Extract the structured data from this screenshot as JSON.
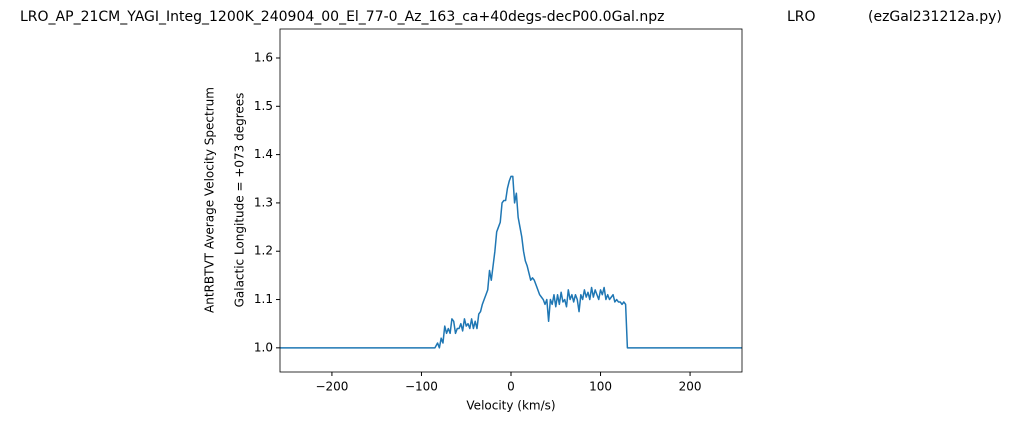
{
  "chart_data": {
    "type": "line",
    "title": "LRO_AP_21CM_YAGI_Integ_1200K_240904_00_El_77-0_Az_163_ca+40degs-decP00.0Gal.npz",
    "annotations": [
      "LRO",
      "(ezGal231212a.py)"
    ],
    "xlabel": "Velocity (km/s)",
    "ylabel": [
      "AntRBTVT Average Velocity Spectrum",
      "Galactic Longitude = +073 degrees"
    ],
    "xlim": [
      -258,
      258
    ],
    "ylim": [
      0.95,
      1.66
    ],
    "xticks": [
      {
        "value": -200,
        "label": "−200"
      },
      {
        "value": -100,
        "label": "−100"
      },
      0,
      100,
      200
    ],
    "yticks": [
      {
        "value": 1.0,
        "label": "1.0"
      },
      1.1,
      1.2,
      1.3,
      1.4,
      1.5,
      1.6
    ],
    "grid": false,
    "x": [
      -258,
      -85,
      -82,
      -80,
      -78,
      -76,
      -74,
      -72,
      -70,
      -68,
      -66,
      -64,
      -62,
      -60,
      -58,
      -56,
      -54,
      -52,
      -50,
      -48,
      -46,
      -44,
      -42,
      -40,
      -38,
      -36,
      -34,
      -32,
      -30,
      -28,
      -26,
      -24,
      -22,
      -20,
      -18,
      -16,
      -14,
      -12,
      -10,
      -8,
      -6,
      -4,
      -2,
      0,
      2,
      4,
      6,
      8,
      10,
      12,
      14,
      16,
      18,
      20,
      22,
      24,
      26,
      28,
      30,
      32,
      34,
      36,
      38,
      40,
      42,
      44,
      46,
      48,
      50,
      52,
      54,
      56,
      58,
      60,
      62,
      64,
      66,
      68,
      70,
      72,
      74,
      76,
      78,
      80,
      82,
      84,
      86,
      88,
      90,
      92,
      94,
      96,
      98,
      100,
      102,
      104,
      106,
      108,
      110,
      112,
      114,
      116,
      118,
      120,
      122,
      124,
      126,
      128,
      130,
      258
    ],
    "series": [
      {
        "color": "#1f77b4",
        "values": [
          1.0,
          1.0,
          1.01,
          1.0,
          1.02,
          1.01,
          1.045,
          1.03,
          1.04,
          1.03,
          1.06,
          1.055,
          1.03,
          1.04,
          1.04,
          1.05,
          1.035,
          1.06,
          1.045,
          1.05,
          1.04,
          1.06,
          1.04,
          1.055,
          1.04,
          1.07,
          1.075,
          1.09,
          1.1,
          1.11,
          1.12,
          1.16,
          1.14,
          1.17,
          1.2,
          1.24,
          1.25,
          1.26,
          1.3,
          1.305,
          1.305,
          1.33,
          1.345,
          1.355,
          1.355,
          1.3,
          1.32,
          1.27,
          1.25,
          1.23,
          1.2,
          1.18,
          1.17,
          1.155,
          1.14,
          1.145,
          1.14,
          1.13,
          1.12,
          1.11,
          1.105,
          1.1,
          1.09,
          1.1,
          1.055,
          1.1,
          1.09,
          1.11,
          1.085,
          1.11,
          1.09,
          1.115,
          1.095,
          1.1,
          1.085,
          1.12,
          1.1,
          1.11,
          1.095,
          1.11,
          1.1,
          1.075,
          1.11,
          1.1,
          1.12,
          1.105,
          1.115,
          1.1,
          1.125,
          1.105,
          1.12,
          1.11,
          1.1,
          1.12,
          1.11,
          1.125,
          1.1,
          1.11,
          1.1,
          1.105,
          1.11,
          1.095,
          1.1,
          1.095,
          1.095,
          1.09,
          1.095,
          1.09,
          1.0,
          1.0
        ]
      }
    ]
  }
}
